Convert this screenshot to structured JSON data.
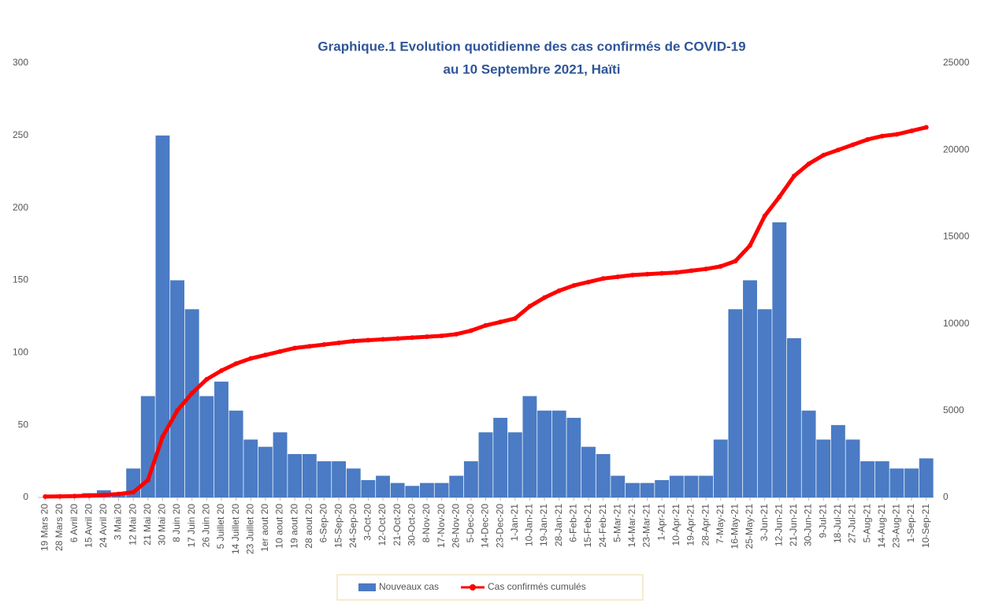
{
  "chart_data": {
    "type": "bar-line",
    "title": [
      "Graphique.1 Evolution quotidienne des cas confirmés de COVID-19",
      "au 10 Septembre 2021, Haïti"
    ],
    "categories": [
      "19 Mars 20",
      "28 Mars 20",
      "6 Avril 20",
      "15 Avril 20",
      "24 Avril 20",
      "3 Mai 20",
      "12 Mai 20",
      "21 Mai 20",
      "30 Mai 20",
      "8 Juin 20",
      "17 Juin 20",
      "26 Juin 20",
      "5 Juillet 20",
      "14 Juillet 20",
      "23 Juillet 20",
      "1er aout 20",
      "10 aout 20",
      "19 aout 20",
      "28 aout 20",
      "6-Sep-20",
      "15-Sep-20",
      "24-Sep-20",
      "3-Oct-20",
      "12-Oct-20",
      "21-Oct-20",
      "30-Oct-20",
      "8-Nov-20",
      "17-Nov-20",
      "26-Nov-20",
      "5-Dec-20",
      "14-Dec-20",
      "23-Dec-20",
      "1-Jan-21",
      "10-Jan-21",
      "19-Jan-21",
      "28-Jan-21",
      "6-Feb-21",
      "15-Feb-21",
      "24-Feb-21",
      "5-Mar-21",
      "14-Mar-21",
      "23-Mar-21",
      "1-Apr-21",
      "10-Apr-21",
      "19-Apr-21",
      "28-Apr-21",
      "7-May-21",
      "16-May-21",
      "25-May-21",
      "3-Jun-21",
      "12-Jun-21",
      "21-Jun-21",
      "30-Jun-21",
      "9-Jul-21",
      "18-Jul-21",
      "27-Jul-21",
      "5-Aug-21",
      "14-Aug-21",
      "23-Aug-21",
      "1-Sep-21",
      "10-Sep-21"
    ],
    "series": [
      {
        "name": "Nouveaux cas",
        "type": "bar",
        "color": "#4a7bc4",
        "values": [
          0,
          0,
          2,
          3,
          5,
          2,
          20,
          70,
          250,
          150,
          130,
          70,
          80,
          60,
          40,
          35,
          45,
          30,
          30,
          25,
          25,
          20,
          12,
          15,
          10,
          8,
          10,
          10,
          15,
          25,
          45,
          55,
          45,
          70,
          60,
          60,
          55,
          35,
          30,
          15,
          10,
          10,
          12,
          15,
          15,
          15,
          40,
          130,
          150,
          130,
          190,
          110,
          60,
          40,
          50,
          40,
          25,
          25,
          20,
          20,
          27
        ]
      },
      {
        "name": "Cas confirmés cumulés",
        "type": "line",
        "axis": "y2",
        "color": "#ff0000",
        "values": [
          50,
          60,
          80,
          100,
          150,
          200,
          300,
          1000,
          3500,
          5000,
          6000,
          6800,
          7300,
          7700,
          8000,
          8200,
          8400,
          8600,
          8700,
          8800,
          8900,
          9000,
          9050,
          9100,
          9150,
          9200,
          9250,
          9300,
          9400,
          9600,
          9900,
          10100,
          10300,
          11000,
          11500,
          11900,
          12200,
          12400,
          12600,
          12700,
          12800,
          12850,
          12900,
          12950,
          13050,
          13150,
          13300,
          13600,
          14500,
          16200,
          17300,
          18500,
          19200,
          19700,
          20000,
          20300,
          20600,
          20800,
          20900,
          21100,
          21300
        ]
      }
    ],
    "ylim": [
      0,
      300
    ],
    "yticks": [
      0,
      50,
      100,
      150,
      200,
      250,
      300
    ],
    "y2lim": [
      0,
      25000
    ],
    "y2ticks": [
      0,
      5000,
      10000,
      15000,
      20000,
      25000
    ],
    "legend": "bottom"
  }
}
